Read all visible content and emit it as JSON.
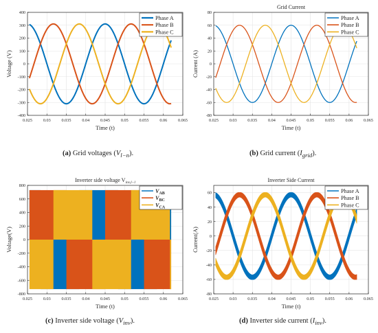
{
  "chart_data": [
    {
      "type": "line",
      "panel": "a",
      "title": "",
      "xlabel": "Time (t)",
      "ylabel": "Voltage (V)",
      "xlim": [
        0.025,
        0.065
      ],
      "ylim": [
        -400,
        400
      ],
      "xticks": [
        0.025,
        0.03,
        0.035,
        0.04,
        0.045,
        0.05,
        0.055,
        0.06,
        0.065
      ],
      "yticks": [
        -400,
        -300,
        -200,
        -100,
        0,
        100,
        200,
        300,
        400
      ],
      "xtick_labels": [
        "0.025",
        "0.03",
        "0.035",
        "0.04",
        "0.045",
        "0.05",
        "0.055",
        "0.06",
        "0.065"
      ],
      "ytick_labels": [
        "-400",
        "-300",
        "-200",
        "-100",
        "0",
        "100",
        "200",
        "300",
        "400"
      ],
      "grid": true,
      "legend": "top-right",
      "frequency_hz": 50,
      "x_range": [
        0.0255,
        0.062
      ],
      "series": [
        {
          "name": "Phase A",
          "amplitude": 310,
          "phase_deg": 0,
          "color": "#0072BD"
        },
        {
          "name": "Phase B",
          "amplitude": 310,
          "phase_deg": -120,
          "color": "#D95319"
        },
        {
          "name": "Phase C",
          "amplitude": 310,
          "phase_deg": 120,
          "color": "#EDB120"
        }
      ],
      "caption": {
        "label": "(a)",
        "text": "Grid voltages (",
        "sym": "V",
        "sub": "l−n",
        "end": ")."
      }
    },
    {
      "type": "line",
      "panel": "b",
      "title": "Grid Current",
      "xlabel": "Time (t)",
      "ylabel": "Current (A)",
      "xlim": [
        0.025,
        0.065
      ],
      "ylim": [
        -80,
        80
      ],
      "xticks": [
        0.025,
        0.03,
        0.035,
        0.04,
        0.045,
        0.05,
        0.055,
        0.06,
        0.065
      ],
      "yticks": [
        -80,
        -60,
        -40,
        -20,
        0,
        20,
        40,
        60,
        80
      ],
      "xtick_labels": [
        "0.025",
        "0.03",
        "0.035",
        "0.04",
        "0.045",
        "0.05",
        "0.055",
        "0.06",
        "0.065"
      ],
      "ytick_labels": [
        "-80",
        "-60",
        "-40",
        "-20",
        "0",
        "20",
        "40",
        "60",
        "80"
      ],
      "grid": true,
      "legend": "top-right",
      "frequency_hz": 50,
      "x_range": [
        0.0255,
        0.062
      ],
      "series": [
        {
          "name": "Phase A",
          "amplitude": 60,
          "phase_deg": 0,
          "color": "#0072BD"
        },
        {
          "name": "Phase B",
          "amplitude": 60,
          "phase_deg": -120,
          "color": "#D95319"
        },
        {
          "name": "Phase C",
          "amplitude": 60,
          "phase_deg": 120,
          "color": "#EDB120"
        }
      ],
      "caption": {
        "label": "(b)",
        "text": "Grid current (",
        "sym": "I",
        "sub": "grid",
        "end": ")."
      }
    },
    {
      "type": "line",
      "panel": "c",
      "title": "Inverter side voltage V",
      "title_sub": "inv,l−l",
      "xlabel": "Time (t)",
      "ylabel": "Voltage(V)",
      "xlim": [
        0.025,
        0.065
      ],
      "ylim": [
        -800,
        800
      ],
      "xticks": [
        0.025,
        0.03,
        0.035,
        0.04,
        0.045,
        0.05,
        0.055,
        0.06,
        0.065
      ],
      "yticks": [
        -800,
        -600,
        -400,
        -200,
        0,
        200,
        400,
        600,
        800
      ],
      "xtick_labels": [
        "0.025",
        "0.03",
        "0.035",
        "0.04",
        "0.045",
        "0.05",
        "0.055",
        "0.06",
        "0.065"
      ],
      "ytick_labels": [
        "-800",
        "-600",
        "-400",
        "-200",
        "0",
        "200",
        "400",
        "600",
        "800"
      ],
      "grid": true,
      "legend": "top-right",
      "frequency_hz": 50,
      "x_range": [
        0.0255,
        0.062
      ],
      "pwm_level": 730,
      "series": [
        {
          "name": "V",
          "sub": "AB",
          "phase_deg": 30,
          "color": "#0072BD"
        },
        {
          "name": "V",
          "sub": "BC",
          "phase_deg": -90,
          "color": "#D95319"
        },
        {
          "name": "V",
          "sub": "CA",
          "phase_deg": 150,
          "color": "#EDB120"
        }
      ],
      "caption": {
        "label": "(c)",
        "text": "Inverter side voltage (",
        "sym": "V",
        "sub": "inv",
        "end": ")."
      }
    },
    {
      "type": "line",
      "panel": "d",
      "title": "Inverter Side Current",
      "xlabel": "Time (t)",
      "ylabel": "Current(A)",
      "xlim": [
        0.025,
        0.065
      ],
      "ylim": [
        -80,
        70
      ],
      "xticks": [
        0.025,
        0.03,
        0.035,
        0.04,
        0.045,
        0.05,
        0.055,
        0.06,
        0.065
      ],
      "yticks": [
        -80,
        -60,
        -40,
        -20,
        0,
        20,
        40,
        60
      ],
      "xtick_labels": [
        "0.025",
        "0.03",
        "0.035",
        "0.04",
        "0.045",
        "0.05",
        "0.055",
        "0.06",
        "0.065"
      ],
      "ytick_labels": [
        "-80",
        "-60",
        "-40",
        "-20",
        "0",
        "20",
        "40",
        "60"
      ],
      "grid": true,
      "legend": "top-right",
      "frequency_hz": 50,
      "x_range": [
        0.0255,
        0.062
      ],
      "ripple": 12,
      "series": [
        {
          "name": "Phase A",
          "amplitude": 57,
          "phase_deg": 0,
          "color": "#0072BD"
        },
        {
          "name": "Phase B",
          "amplitude": 57,
          "phase_deg": -120,
          "color": "#D95319"
        },
        {
          "name": "Phase C",
          "amplitude": 57,
          "phase_deg": 120,
          "color": "#EDB120"
        }
      ],
      "caption": {
        "label": "(d)",
        "text": "Inverter side current (",
        "sym": "I",
        "sub": "inv",
        "end": ")."
      }
    }
  ]
}
